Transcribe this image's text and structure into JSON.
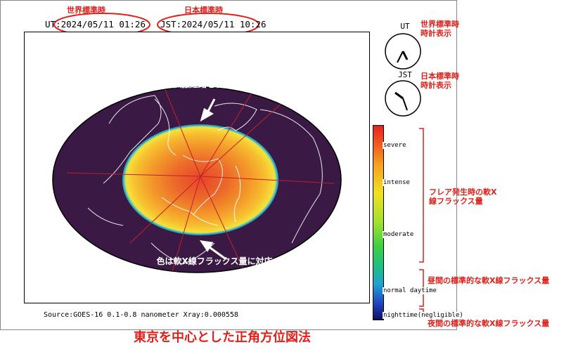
{
  "header": {
    "ut_caption": "世界標準時",
    "jst_caption": "日本標準時",
    "ut_time": "UT:2024/05/11 01:26",
    "jst_time": "JST:2024/05/11 10:26"
  },
  "clocks": {
    "ut_label": "UT",
    "jst_label": "JST",
    "ut_note": "世界標準時\n時計表示",
    "jst_note": "日本標準時\n時計表示"
  },
  "map": {
    "note_top": "赤線は東京を中心とし\nた主な伝搬経路を表す",
    "note_bottom": "色は軟X線フラックス量に対応"
  },
  "scale": {
    "labels": [
      "severe",
      "intense",
      "moderate",
      "normal daytime",
      "nighttime(negligible)"
    ],
    "note_flare": "フレア発生時の軟X\n線フラックス量",
    "note_daytime": "昼間の標準的な軟X線フラックス量",
    "note_night": "夜間の標準的な軟X線フラックス量"
  },
  "footer": {
    "source": "Source:GOES-16 0.1-0.8 nanometer  Xray:0.000558",
    "title": "東京を中心とした正角方位図法"
  },
  "colors": {
    "annotation": "#e0201a",
    "map_night": "#3a1a44",
    "flare_core": "#e05a2a",
    "flare_outer": "#f5d020"
  }
}
